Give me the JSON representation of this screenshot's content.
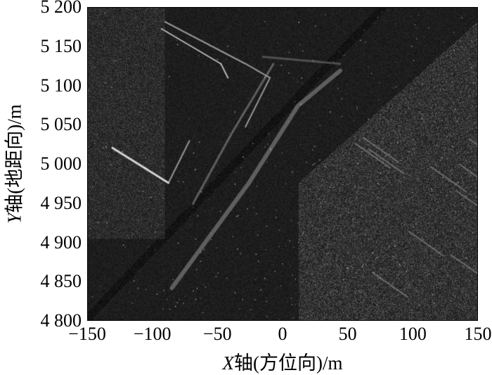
{
  "chart_data": {
    "type": "heatmap",
    "description_kind": "grayscale radar image",
    "xlabel_var": "X",
    "xlabel_rest": "轴(方位向)/m",
    "ylabel_var": "Y",
    "ylabel_rest": "轴(地距向)/m",
    "xlim": [
      -150,
      150
    ],
    "ylim": [
      4800,
      5200
    ],
    "xticks": [
      "−150",
      "−100",
      "−50",
      "0",
      "50",
      "100",
      "150"
    ],
    "xtick_values": [
      -150,
      -100,
      -50,
      0,
      50,
      100,
      150
    ],
    "yticks": [
      "5 200",
      "5 150",
      "5 100",
      "5 050",
      "5 000",
      "4 950",
      "4 900",
      "4 850",
      "4 800"
    ],
    "ytick_values": [
      5200,
      5150,
      5100,
      5050,
      5000,
      4950,
      4900,
      4850,
      4800
    ],
    "colormap": "gray"
  }
}
